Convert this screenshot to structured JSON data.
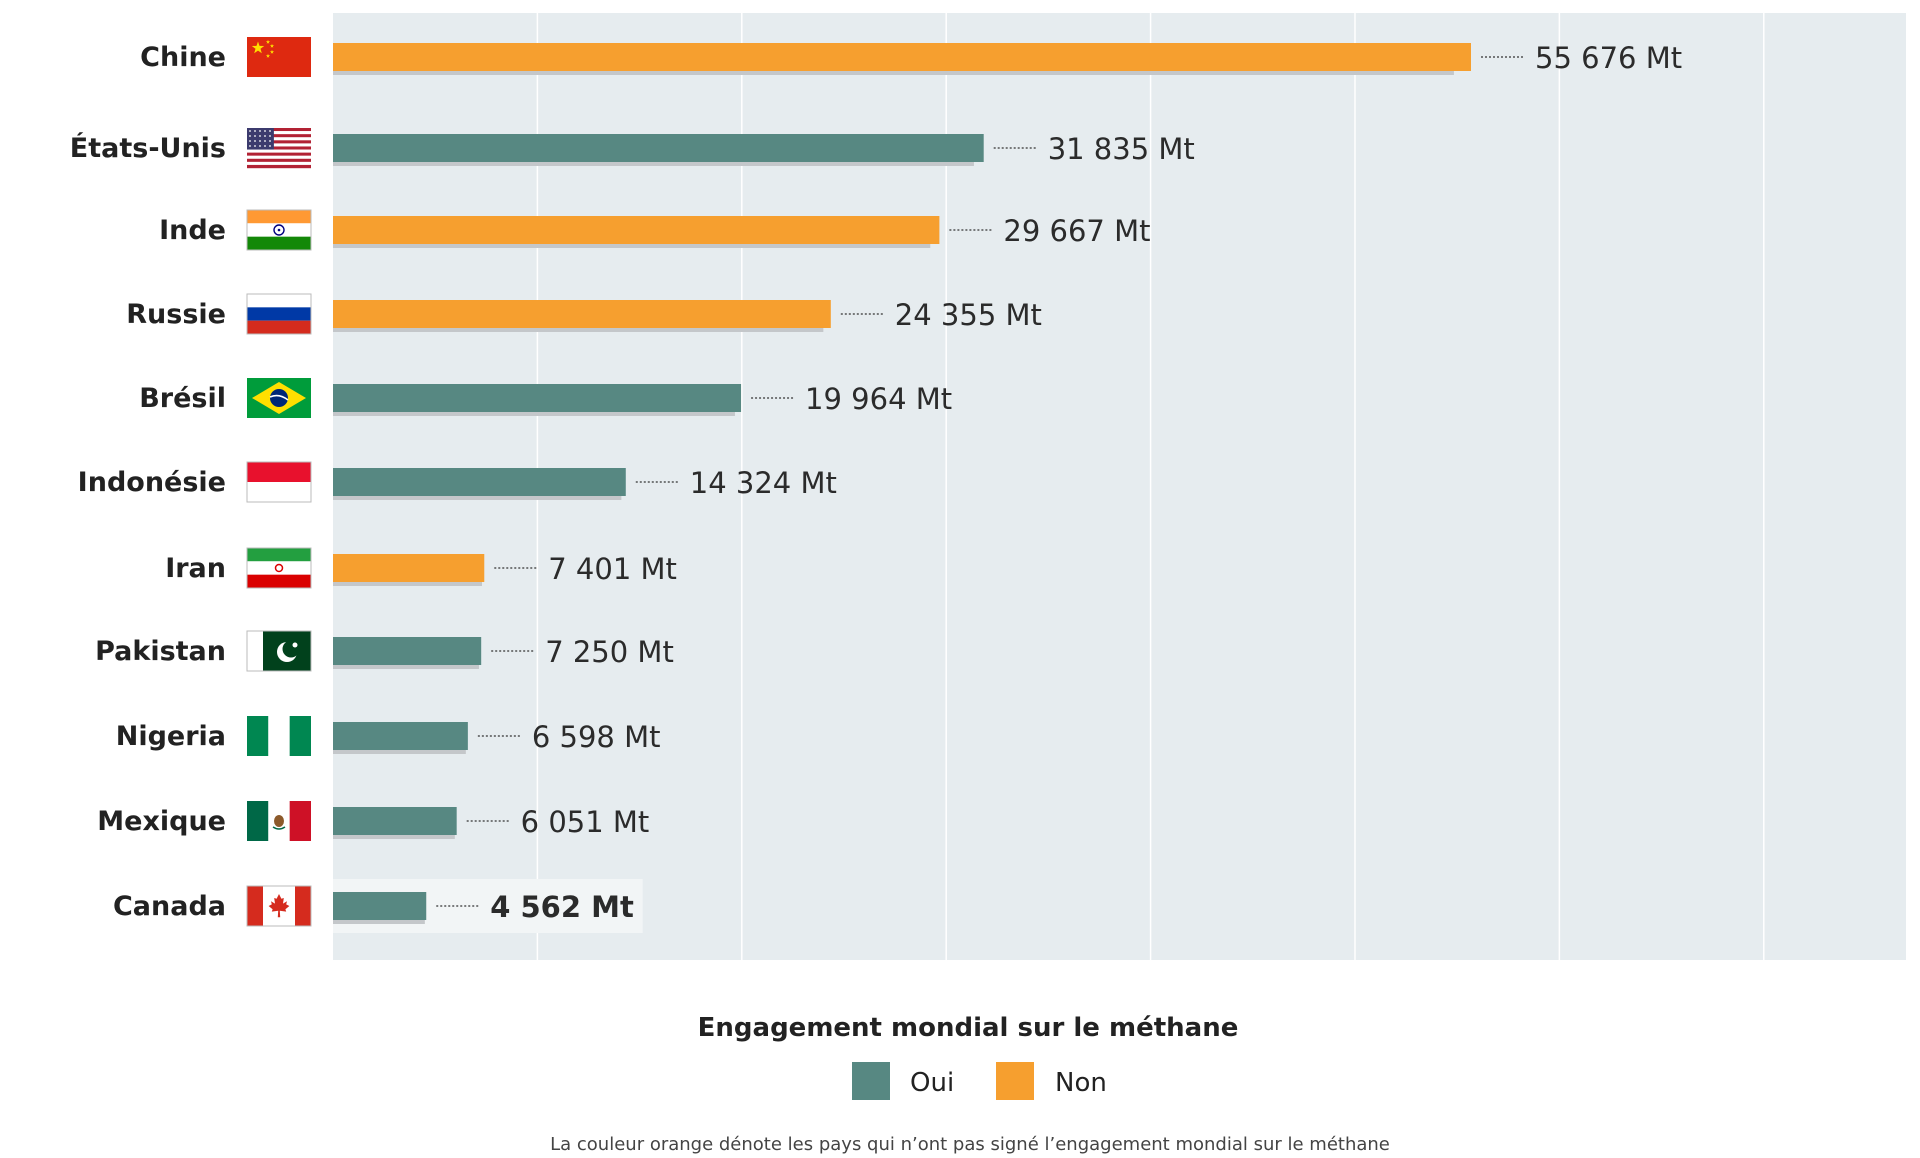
{
  "chart_data": {
    "type": "bar",
    "orientation": "horizontal",
    "unit": "Mt",
    "categories": [
      "Chine",
      "États-Unis",
      "Inde",
      "Russie",
      "Brésil",
      "Indonésie",
      "Iran",
      "Pakistan",
      "Nigeria",
      "Mexique",
      "Canada"
    ],
    "values": [
      55676,
      31835,
      29667,
      24355,
      19964,
      14324,
      7401,
      7250,
      6598,
      6051,
      4562
    ],
    "value_labels": [
      "55 676 Mt",
      "31 835 Mt",
      "29 667 Mt",
      "24 355 Mt",
      "19 964 Mt",
      "14 324 Mt",
      "7 401 Mt",
      "7 250 Mt",
      "6 598 Mt",
      "6 051 Mt",
      "4 562 Mt"
    ],
    "signed_commitment": [
      "Non",
      "Oui",
      "Non",
      "Non",
      "Oui",
      "Oui",
      "Non",
      "Oui",
      "Oui",
      "Oui",
      "Oui"
    ],
    "flags": [
      "china-flag",
      "usa-flag",
      "india-flag",
      "russia-flag",
      "brazil-flag",
      "indonesia-flag",
      "iran-flag",
      "pakistan-flag",
      "nigeria-flag",
      "mexico-flag",
      "canada-flag"
    ],
    "highlight": "Canada",
    "xlim": [
      0,
      80000
    ],
    "grid": true,
    "legend": {
      "title": "Engagement mondial sur le méthane",
      "position": "bottom",
      "items": [
        {
          "label": "Oui",
          "color": "#578882"
        },
        {
          "label": "Non",
          "color": "#f69f2f"
        }
      ]
    },
    "caption": "La couleur orange dénote les pays qui n’ont pas signé l’engagement mondial sur le méthane"
  },
  "colors": {
    "panel": "#e6ecef",
    "grid": "#ffffff",
    "shadow": "#c4c7ca",
    "highlight_box": "#f2f5f6"
  }
}
